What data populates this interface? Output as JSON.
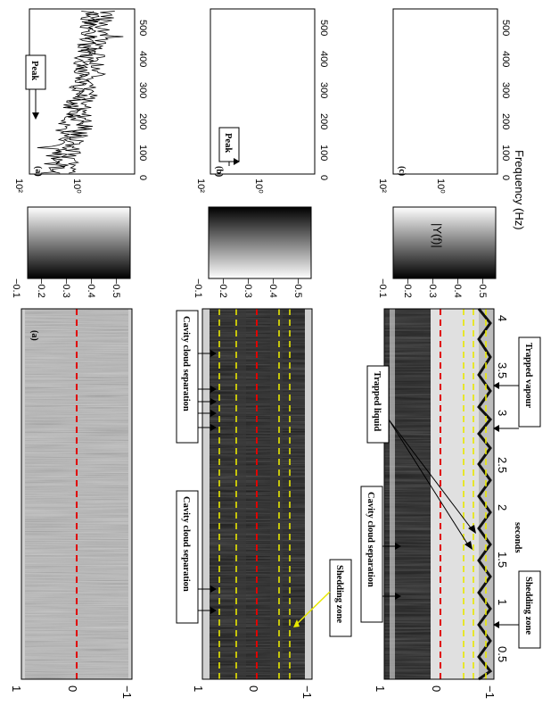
{
  "spectrogram": {
    "x_ticks": [
      "0.5",
      "1",
      "1.5",
      "2",
      "2.5",
      "3",
      "3.5",
      "4"
    ],
    "x_label": "seconds",
    "y_ticks": [
      "1",
      "0",
      "−1"
    ],
    "panel_labels": [
      "(a)"
    ]
  },
  "colorbar": {
    "ticks": [
      "−0.1",
      "−0.2",
      "−0.3",
      "−0.4",
      "−0.5"
    ]
  },
  "spectrum": {
    "x_ticks": [
      "0",
      "100",
      "200",
      "300",
      "400",
      "500"
    ],
    "x_label": "Frequency (Hz)",
    "y_ticks": [
      "10²",
      "10⁰"
    ],
    "y_label": "|Y(f)|",
    "panel_labels": [
      "(a)",
      "(b)",
      "(c)"
    ]
  },
  "annotations": {
    "peak_a": "Peak",
    "peak_b": "Peak",
    "cavity_b_left": "Cavity cloud separation",
    "cavity_b_right": "Cavity cloud separation",
    "shedding_b": "Shedding zone",
    "cavity_c": "Cavity cloud separation",
    "trapped_liquid": "Trapped liquid",
    "trapped_vapour": "Trapped vapour",
    "shedding_c": "Shedding zone"
  }
}
